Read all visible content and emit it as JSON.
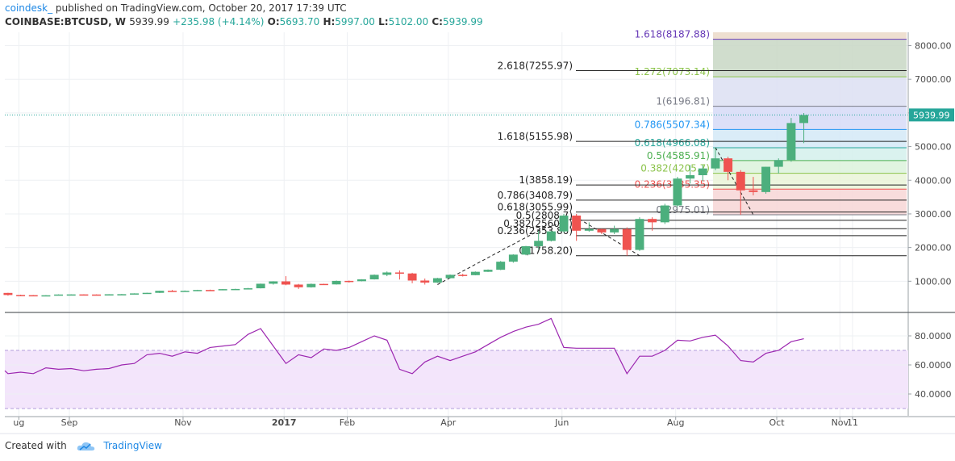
{
  "header": {
    "brand": "coindesk_",
    "published": "published on TradingView.com, October 20, 2017 17:39 UTC",
    "symbol": "COINBASE:BTCUSD, W",
    "last": "5939.99",
    "change": "+235.98 (+4.14%)",
    "open_label": "O:",
    "open": "5693.70",
    "high_label": "H:",
    "high": "5997.00",
    "low_label": "L:",
    "low": "5102.00",
    "close_label": "C:",
    "close": "5939.99"
  },
  "footer": {
    "created_with": "Created with",
    "brand": "TradingView"
  },
  "colors": {
    "up": "#26a69a",
    "up_body": "#4caf7d",
    "down": "#ef5350",
    "rsi_line": "#9c27b0",
    "rsi_band": "#f3e5fb",
    "price_line": "#26a69a"
  },
  "chart_data": [
    {
      "type": "candlestick",
      "symbol": "COINBASE:BTCUSD",
      "interval": "W",
      "y_ticks": [
        "1000.00",
        "2000.00",
        "3000.00",
        "4000.00",
        "5000.00",
        "6000.00",
        "7000.00",
        "8000.00"
      ],
      "ylim": [
        0,
        8300
      ],
      "x_ticks": [
        {
          "label": "ug",
          "date": "2016-08-07"
        },
        {
          "label": "Sep",
          "date": "2016-09-04"
        },
        {
          "label": "Nov",
          "date": "2016-11-06"
        },
        {
          "label": "2017",
          "date": "2017-01-01"
        },
        {
          "label": "Feb",
          "date": "2017-02-05"
        },
        {
          "label": "Apr",
          "date": "2017-04-02"
        },
        {
          "label": "Jun",
          "date": "2017-06-04"
        },
        {
          "label": "Aug",
          "date": "2017-08-06"
        },
        {
          "label": "Oct",
          "date": "2017-10-01"
        },
        {
          "label": "Nov",
          "date": "2017-11-05"
        },
        {
          "label": "11",
          "date": "2017-11-12"
        }
      ],
      "last_price_label": "5939.99",
      "candles": [
        {
          "date": "2016-07-25",
          "o": 655,
          "h": 660,
          "l": 645,
          "c": 652
        },
        {
          "date": "2016-08-01",
          "o": 652,
          "h": 655,
          "l": 570,
          "c": 590
        },
        {
          "date": "2016-08-08",
          "o": 590,
          "h": 600,
          "l": 580,
          "c": 585
        },
        {
          "date": "2016-08-15",
          "o": 585,
          "h": 590,
          "l": 575,
          "c": 580
        },
        {
          "date": "2016-08-22",
          "o": 580,
          "h": 585,
          "l": 575,
          "c": 582
        },
        {
          "date": "2016-08-29",
          "o": 582,
          "h": 610,
          "l": 580,
          "c": 605
        },
        {
          "date": "2016-09-05",
          "o": 605,
          "h": 612,
          "l": 598,
          "c": 608
        },
        {
          "date": "2016-09-12",
          "o": 608,
          "h": 612,
          "l": 600,
          "c": 605
        },
        {
          "date": "2016-09-19",
          "o": 605,
          "h": 608,
          "l": 595,
          "c": 600
        },
        {
          "date": "2016-09-26",
          "o": 600,
          "h": 615,
          "l": 598,
          "c": 612
        },
        {
          "date": "2016-10-03",
          "o": 612,
          "h": 620,
          "l": 605,
          "c": 615
        },
        {
          "date": "2016-10-10",
          "o": 615,
          "h": 640,
          "l": 612,
          "c": 638
        },
        {
          "date": "2016-10-17",
          "o": 638,
          "h": 660,
          "l": 630,
          "c": 655
        },
        {
          "date": "2016-10-24",
          "o": 655,
          "h": 720,
          "l": 650,
          "c": 715
        },
        {
          "date": "2016-10-31",
          "o": 715,
          "h": 740,
          "l": 695,
          "c": 705
        },
        {
          "date": "2016-11-07",
          "o": 705,
          "h": 725,
          "l": 695,
          "c": 715
        },
        {
          "date": "2016-11-14",
          "o": 715,
          "h": 745,
          "l": 705,
          "c": 740
        },
        {
          "date": "2016-11-21",
          "o": 740,
          "h": 750,
          "l": 725,
          "c": 735
        },
        {
          "date": "2016-11-28",
          "o": 735,
          "h": 770,
          "l": 730,
          "c": 765
        },
        {
          "date": "2016-12-05",
          "o": 765,
          "h": 775,
          "l": 755,
          "c": 770
        },
        {
          "date": "2016-12-12",
          "o": 770,
          "h": 800,
          "l": 765,
          "c": 790
        },
        {
          "date": "2016-12-19",
          "o": 790,
          "h": 930,
          "l": 785,
          "c": 925
        },
        {
          "date": "2016-12-26",
          "o": 925,
          "h": 1000,
          "l": 900,
          "c": 995
        },
        {
          "date": "2017-01-02",
          "o": 995,
          "h": 1150,
          "l": 880,
          "c": 900
        },
        {
          "date": "2017-01-09",
          "o": 900,
          "h": 920,
          "l": 770,
          "c": 820
        },
        {
          "date": "2017-01-16",
          "o": 820,
          "h": 930,
          "l": 810,
          "c": 920
        },
        {
          "date": "2017-01-23",
          "o": 920,
          "h": 925,
          "l": 895,
          "c": 905
        },
        {
          "date": "2017-01-30",
          "o": 905,
          "h": 1020,
          "l": 900,
          "c": 1010
        },
        {
          "date": "2017-02-06",
          "o": 1010,
          "h": 1020,
          "l": 960,
          "c": 1000
        },
        {
          "date": "2017-02-13",
          "o": 1000,
          "h": 1060,
          "l": 995,
          "c": 1055
        },
        {
          "date": "2017-02-20",
          "o": 1055,
          "h": 1200,
          "l": 1050,
          "c": 1190
        },
        {
          "date": "2017-02-27",
          "o": 1190,
          "h": 1290,
          "l": 1150,
          "c": 1260
        },
        {
          "date": "2017-03-06",
          "o": 1260,
          "h": 1320,
          "l": 1050,
          "c": 1230
        },
        {
          "date": "2017-03-13",
          "o": 1230,
          "h": 1250,
          "l": 940,
          "c": 1020
        },
        {
          "date": "2017-03-20",
          "o": 1020,
          "h": 1080,
          "l": 900,
          "c": 960
        },
        {
          "date": "2017-03-27",
          "o": 960,
          "h": 1100,
          "l": 950,
          "c": 1090
        },
        {
          "date": "2017-04-03",
          "o": 1090,
          "h": 1200,
          "l": 1080,
          "c": 1190
        },
        {
          "date": "2017-04-10",
          "o": 1190,
          "h": 1220,
          "l": 1140,
          "c": 1180
        },
        {
          "date": "2017-04-17",
          "o": 1180,
          "h": 1290,
          "l": 1175,
          "c": 1280
        },
        {
          "date": "2017-04-24",
          "o": 1280,
          "h": 1350,
          "l": 1275,
          "c": 1340
        },
        {
          "date": "2017-05-01",
          "o": 1340,
          "h": 1600,
          "l": 1330,
          "c": 1580
        },
        {
          "date": "2017-05-08",
          "o": 1580,
          "h": 1800,
          "l": 1550,
          "c": 1790
        },
        {
          "date": "2017-05-15",
          "o": 1790,
          "h": 2050,
          "l": 1770,
          "c": 2040
        },
        {
          "date": "2017-05-22",
          "o": 2040,
          "h": 2500,
          "l": 1950,
          "c": 2200
        },
        {
          "date": "2017-05-29",
          "o": 2200,
          "h": 2500,
          "l": 2180,
          "c": 2480
        },
        {
          "date": "2017-06-05",
          "o": 2480,
          "h": 3000,
          "l": 2450,
          "c": 2950
        },
        {
          "date": "2017-06-12",
          "o": 2950,
          "h": 3000,
          "l": 2200,
          "c": 2500
        },
        {
          "date": "2017-06-19",
          "o": 2500,
          "h": 2750,
          "l": 2470,
          "c": 2550
        },
        {
          "date": "2017-06-26",
          "o": 2550,
          "h": 2560,
          "l": 2400,
          "c": 2450
        },
        {
          "date": "2017-07-03",
          "o": 2450,
          "h": 2650,
          "l": 2400,
          "c": 2550
        },
        {
          "date": "2017-07-10",
          "o": 2550,
          "h": 2600,
          "l": 1758,
          "c": 1930
        },
        {
          "date": "2017-07-17",
          "o": 1930,
          "h": 2900,
          "l": 1900,
          "c": 2850
        },
        {
          "date": "2017-07-24",
          "o": 2850,
          "h": 2900,
          "l": 2500,
          "c": 2750
        },
        {
          "date": "2017-07-31",
          "o": 2750,
          "h": 3300,
          "l": 2700,
          "c": 3250
        },
        {
          "date": "2017-08-07",
          "o": 3250,
          "h": 4100,
          "l": 3200,
          "c": 4050
        },
        {
          "date": "2017-08-14",
          "o": 4050,
          "h": 4450,
          "l": 3900,
          "c": 4150
        },
        {
          "date": "2017-08-21",
          "o": 4150,
          "h": 4450,
          "l": 3970,
          "c": 4350
        },
        {
          "date": "2017-08-28",
          "o": 4350,
          "h": 4975,
          "l": 4300,
          "c": 4650
        },
        {
          "date": "2017-09-04",
          "o": 4650,
          "h": 4700,
          "l": 4000,
          "c": 4250
        },
        {
          "date": "2017-09-11",
          "o": 4250,
          "h": 4300,
          "l": 2975,
          "c": 3700
        },
        {
          "date": "2017-09-18",
          "o": 3700,
          "h": 4100,
          "l": 3550,
          "c": 3650
        },
        {
          "date": "2017-09-25",
          "o": 3650,
          "h": 4400,
          "l": 3600,
          "c": 4400
        },
        {
          "date": "2017-10-02",
          "o": 4400,
          "h": 4650,
          "l": 4200,
          "c": 4600
        },
        {
          "date": "2017-10-09",
          "o": 4600,
          "h": 5850,
          "l": 4550,
          "c": 5700
        },
        {
          "date": "2017-10-16",
          "o": 5700,
          "h": 5997,
          "l": 5102,
          "c": 5940
        }
      ],
      "fib_left": [
        {
          "label": "2.618(7255.97)",
          "value": 7255.97
        },
        {
          "label": "1.618(5155.98)",
          "value": 5155.98
        },
        {
          "label": "1(3858.19)",
          "value": 3858.19
        },
        {
          "label": "0.786(3408.79)",
          "value": 3408.79
        },
        {
          "label": "0.618(3055.99)",
          "value": 3055.99
        },
        {
          "label": "0.5(2808.7)",
          "value": 2808.7
        },
        {
          "label": "0.382(2560.8)",
          "value": 2560.8
        },
        {
          "label": "0.236(2353.80)",
          "value": 2353.8
        },
        {
          "label": "0(1758.20)",
          "value": 1758.2
        }
      ],
      "fib_right": [
        {
          "label": "1.618(8187.88)",
          "value": 8187.88,
          "color": "#673ab7"
        },
        {
          "label": "1.272(7073.14)",
          "value": 7073.14,
          "color": "#8bc34a"
        },
        {
          "label": "1(6196.81)",
          "value": 6196.81,
          "color": "#787b86"
        },
        {
          "label": "0.786(5507.34)",
          "value": 5507.34,
          "color": "#2196f3"
        },
        {
          "label": "0.618(4966.08)",
          "value": 4966.08,
          "color": "#26a69a"
        },
        {
          "label": "0.5(4585.91)",
          "value": 4585.91,
          "color": "#4caf50"
        },
        {
          "label": "0.382(4205.7)",
          "value": 4205.7,
          "color": "#8bc34a"
        },
        {
          "label": "0.236(3735.35)",
          "value": 3735.35,
          "color": "#ef5350"
        },
        {
          "label": "0(2975.01)",
          "value": 2975.01,
          "color": "#787b86"
        }
      ],
      "trend_lines": [
        {
          "points": [
            [
              "2017-03-27",
              900
            ],
            [
              "2017-05-22",
              2500
            ],
            [
              "2017-06-12",
              2900
            ],
            [
              "2017-07-17",
              1758
            ]
          ]
        },
        {
          "points": [
            [
              "2017-08-28",
              4975
            ],
            [
              "2017-09-18",
              2975
            ]
          ]
        }
      ]
    },
    {
      "type": "line",
      "name": "RSI",
      "y_ticks": [
        "40.0000",
        "60.0000",
        "80.0000"
      ],
      "ylim": [
        25,
        95
      ],
      "band": [
        30,
        70
      ],
      "series": [
        {
          "date": "2016-07-25",
          "value": 56
        },
        {
          "date": "2016-08-01",
          "value": 54
        },
        {
          "date": "2016-08-08",
          "value": 55
        },
        {
          "date": "2016-08-15",
          "value": 54
        },
        {
          "date": "2016-08-22",
          "value": 58
        },
        {
          "date": "2016-08-29",
          "value": 57
        },
        {
          "date": "2016-09-05",
          "value": 57.5
        },
        {
          "date": "2016-09-12",
          "value": 56
        },
        {
          "date": "2016-09-19",
          "value": 57
        },
        {
          "date": "2016-09-26",
          "value": 57.5
        },
        {
          "date": "2016-10-03",
          "value": 60
        },
        {
          "date": "2016-10-10",
          "value": 61
        },
        {
          "date": "2016-10-17",
          "value": 67
        },
        {
          "date": "2016-10-24",
          "value": 68
        },
        {
          "date": "2016-10-31",
          "value": 66
        },
        {
          "date": "2016-11-07",
          "value": 69
        },
        {
          "date": "2016-11-14",
          "value": 68
        },
        {
          "date": "2016-11-21",
          "value": 72
        },
        {
          "date": "2016-11-28",
          "value": 73
        },
        {
          "date": "2016-12-05",
          "value": 74
        },
        {
          "date": "2016-12-12",
          "value": 81
        },
        {
          "date": "2016-12-19",
          "value": 85
        },
        {
          "date": "2016-12-26",
          "value": 73
        },
        {
          "date": "2017-01-02",
          "value": 61
        },
        {
          "date": "2017-01-09",
          "value": 67
        },
        {
          "date": "2017-01-16",
          "value": 65
        },
        {
          "date": "2017-01-23",
          "value": 71
        },
        {
          "date": "2017-01-30",
          "value": 70
        },
        {
          "date": "2017-02-06",
          "value": 72
        },
        {
          "date": "2017-02-13",
          "value": 76
        },
        {
          "date": "2017-02-20",
          "value": 80
        },
        {
          "date": "2017-02-27",
          "value": 77
        },
        {
          "date": "2017-03-06",
          "value": 57
        },
        {
          "date": "2017-03-13",
          "value": 54
        },
        {
          "date": "2017-03-20",
          "value": 62
        },
        {
          "date": "2017-03-27",
          "value": 66
        },
        {
          "date": "2017-04-03",
          "value": 63
        },
        {
          "date": "2017-04-10",
          "value": 66
        },
        {
          "date": "2017-04-17",
          "value": 69
        },
        {
          "date": "2017-04-24",
          "value": 74
        },
        {
          "date": "2017-05-01",
          "value": 79
        },
        {
          "date": "2017-05-08",
          "value": 83
        },
        {
          "date": "2017-05-15",
          "value": 86
        },
        {
          "date": "2017-05-22",
          "value": 88
        },
        {
          "date": "2017-05-29",
          "value": 92
        },
        {
          "date": "2017-06-05",
          "value": 72
        },
        {
          "date": "2017-06-12",
          "value": 71.5
        },
        {
          "date": "2017-06-19",
          "value": 71.5
        },
        {
          "date": "2017-06-26",
          "value": 71.5
        },
        {
          "date": "2017-07-03",
          "value": 71.5
        },
        {
          "date": "2017-07-10",
          "value": 54
        },
        {
          "date": "2017-07-17",
          "value": 66
        },
        {
          "date": "2017-07-24",
          "value": 66
        },
        {
          "date": "2017-07-31",
          "value": 70
        },
        {
          "date": "2017-08-07",
          "value": 77
        },
        {
          "date": "2017-08-14",
          "value": 76.5
        },
        {
          "date": "2017-08-21",
          "value": 79
        },
        {
          "date": "2017-08-28",
          "value": 80.5
        },
        {
          "date": "2017-09-04",
          "value": 73
        },
        {
          "date": "2017-09-11",
          "value": 63
        },
        {
          "date": "2017-09-18",
          "value": 62
        },
        {
          "date": "2017-09-25",
          "value": 68
        },
        {
          "date": "2017-10-02",
          "value": 70
        },
        {
          "date": "2017-10-09",
          "value": 76
        },
        {
          "date": "2017-10-16",
          "value": 78
        }
      ]
    }
  ]
}
